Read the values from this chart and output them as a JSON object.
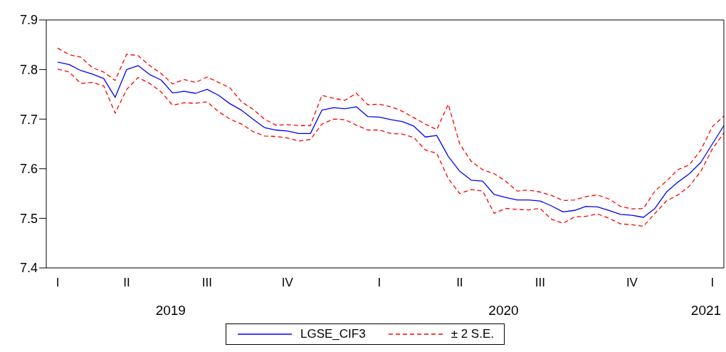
{
  "chart_data": {
    "type": "line",
    "ylim": [
      7.4,
      7.9
    ],
    "yticks": [
      7.4,
      7.5,
      7.6,
      7.7,
      7.8,
      7.9
    ],
    "categories": [
      null,
      "I",
      null,
      null,
      null,
      null,
      null,
      "II",
      null,
      null,
      null,
      null,
      null,
      null,
      "III",
      null,
      null,
      null,
      null,
      null,
      null,
      "IV",
      null,
      null,
      null,
      null,
      null,
      null,
      null,
      "I",
      null,
      null,
      null,
      null,
      null,
      null,
      "II",
      null,
      null,
      null,
      null,
      null,
      null,
      "III",
      null,
      null,
      null,
      null,
      null,
      null,
      null,
      "IV",
      null,
      null,
      null,
      null,
      null,
      null,
      "I",
      null
    ],
    "annotations": [
      "2019",
      "2020",
      "2021"
    ],
    "legend": "bottom",
    "grid": false,
    "marker": "none",
    "series": [
      {
        "name": "LGSE_CIF3",
        "color": "#0000ff",
        "line_style": "solid",
        "values": [
          null,
          7.815,
          7.81,
          7.798,
          7.791,
          7.782,
          7.744,
          7.8,
          7.808,
          7.79,
          7.779,
          7.753,
          7.756,
          7.752,
          7.76,
          7.748,
          7.731,
          7.718,
          7.7,
          7.683,
          7.678,
          7.676,
          7.671,
          7.671,
          7.718,
          7.723,
          7.721,
          7.725,
          7.705,
          7.704,
          7.699,
          7.695,
          7.686,
          7.664,
          7.667,
          7.625,
          7.595,
          7.577,
          7.575,
          7.548,
          7.542,
          7.537,
          7.537,
          7.535,
          7.525,
          7.513,
          7.516,
          7.524,
          7.523,
          7.516,
          7.508,
          7.506,
          7.502,
          7.52,
          7.553,
          7.573,
          7.59,
          7.613,
          7.65,
          7.687
        ]
      },
      {
        "name": "± 2 S.E.",
        "color": "#ff0000",
        "line_style": "dashed",
        "values": [
          null,
          7.843,
          7.83,
          7.825,
          7.804,
          7.795,
          7.778,
          7.831,
          7.828,
          7.808,
          7.792,
          7.771,
          7.78,
          7.774,
          7.785,
          7.774,
          7.763,
          7.735,
          7.72,
          7.7,
          7.688,
          7.689,
          7.687,
          7.687,
          7.748,
          7.742,
          7.738,
          7.752,
          7.729,
          7.73,
          7.725,
          7.716,
          7.703,
          7.69,
          7.679,
          7.73,
          7.65,
          7.615,
          7.598,
          7.59,
          7.575,
          7.555,
          7.557,
          7.553,
          7.546,
          7.536,
          7.537,
          7.544,
          7.547,
          7.539,
          7.524,
          7.519,
          7.52,
          7.555,
          7.575,
          7.598,
          7.608,
          7.638,
          7.685,
          7.706
        ]
      },
      {
        "color": "#ff0000",
        "line_style": "dashed",
        "values": [
          null,
          7.801,
          7.795,
          7.772,
          7.774,
          7.767,
          7.712,
          7.76,
          7.784,
          7.772,
          7.755,
          7.728,
          7.733,
          7.732,
          7.735,
          7.715,
          7.7,
          7.69,
          7.675,
          7.666,
          7.665,
          7.662,
          7.656,
          7.659,
          7.69,
          7.7,
          7.699,
          7.688,
          7.678,
          7.678,
          7.671,
          7.67,
          7.663,
          7.638,
          7.631,
          7.58,
          7.55,
          7.558,
          7.555,
          7.51,
          7.52,
          7.518,
          7.517,
          7.52,
          7.498,
          7.49,
          7.503,
          7.504,
          7.509,
          7.5,
          7.489,
          7.487,
          7.484,
          7.51,
          7.535,
          7.547,
          7.565,
          7.595,
          7.64,
          7.672
        ]
      }
    ]
  }
}
